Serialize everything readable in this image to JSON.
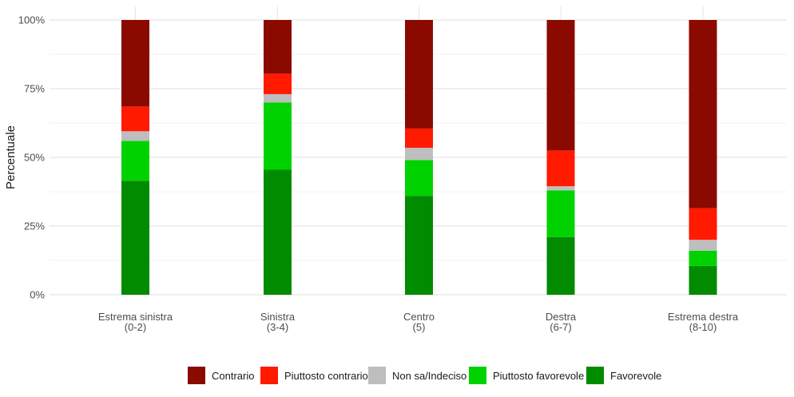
{
  "chart_data": {
    "type": "bar",
    "stacked": true,
    "ylabel": "Percentuale",
    "xlabel": "",
    "ylim": [
      0,
      1
    ],
    "y_ticks": [
      "0%",
      "25%",
      "50%",
      "75%",
      "100%"
    ],
    "categories": [
      [
        "Estrema sinistra",
        "(0-2)"
      ],
      [
        "Sinistra",
        "(3-4)"
      ],
      [
        "Centro",
        "(5)"
      ],
      [
        "Destra",
        "(6-7)"
      ],
      [
        "Estrema destra",
        "(8-10)"
      ]
    ],
    "series": [
      {
        "name": "Favorevole",
        "color": "#008b00",
        "values": [
          0.415,
          0.455,
          0.36,
          0.21,
          0.105
        ]
      },
      {
        "name": "Piuttosto favorevole",
        "color": "#00d200",
        "values": [
          0.145,
          0.245,
          0.13,
          0.17,
          0.055
        ]
      },
      {
        "name": "Non sa/Indeciso",
        "color": "#bebebe",
        "values": [
          0.035,
          0.03,
          0.045,
          0.015,
          0.04
        ]
      },
      {
        "name": "Piuttosto contrario",
        "color": "#ff1a00",
        "values": [
          0.09,
          0.075,
          0.07,
          0.13,
          0.115
        ]
      },
      {
        "name": "Contrario",
        "color": "#8b0a00",
        "values": [
          0.315,
          0.195,
          0.395,
          0.475,
          0.685
        ]
      }
    ],
    "legend": {
      "position": "bottom",
      "order": [
        "Contrario",
        "Piuttosto contrario",
        "Non sa/Indeciso",
        "Piuttosto favorevole",
        "Favorevole"
      ]
    },
    "grid": true
  }
}
